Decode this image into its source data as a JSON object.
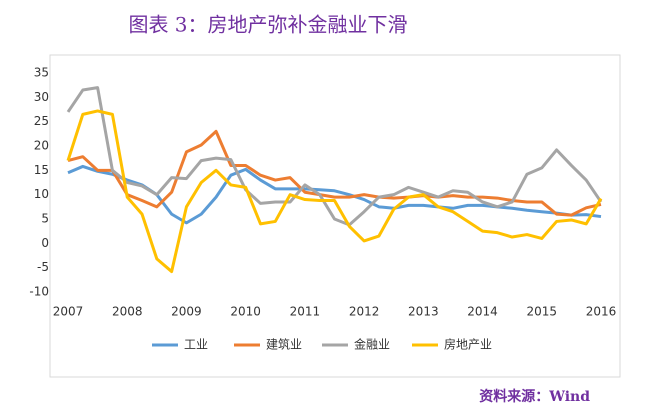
{
  "chart_data": {
    "type": "line",
    "title": "图表 3：房地产弥补金融业下滑",
    "source": "资料来源：Wind",
    "x": [
      2007,
      2007.25,
      2007.5,
      2007.75,
      2008,
      2008.25,
      2008.5,
      2008.75,
      2009,
      2009.25,
      2009.5,
      2009.75,
      2010,
      2010.25,
      2010.5,
      2010.75,
      2011,
      2011.25,
      2011.5,
      2011.75,
      2012,
      2012.25,
      2012.5,
      2012.75,
      2013,
      2013.25,
      2013.5,
      2013.75,
      2014,
      2014.25,
      2014.5,
      2014.75,
      2015,
      2015.25,
      2015.5,
      2015.75,
      2016
    ],
    "series": [
      {
        "name": "工业",
        "color": "#5b9bd5",
        "values": [
          14.5,
          15.8,
          14.8,
          14.2,
          13,
          12,
          10,
          6,
          4.2,
          6,
          9.5,
          14,
          15.2,
          13,
          11.2,
          11.2,
          11.2,
          11,
          10.8,
          10,
          9,
          7.5,
          7.2,
          7.8,
          7.8,
          7.5,
          7.2,
          7.8,
          7.8,
          7.5,
          7.2,
          6.8,
          6.5,
          6.2,
          5.8,
          5.9,
          5.5
        ]
      },
      {
        "name": "建筑业",
        "color": "#ed7d31",
        "values": [
          17,
          17.8,
          15,
          15,
          10,
          8.8,
          7.5,
          10.5,
          18.8,
          20.2,
          23,
          16,
          16,
          14,
          13,
          13.5,
          10.5,
          10,
          9.5,
          9.5,
          10,
          9.5,
          9.3,
          9.5,
          9.8,
          9.5,
          9.8,
          9.5,
          9.5,
          9.3,
          8.8,
          8.5,
          8.5,
          6,
          5.8,
          7.3,
          8
        ]
      },
      {
        "name": "金融业",
        "color": "#a5a5a5",
        "values": [
          27,
          31.5,
          32,
          15,
          12.5,
          11.8,
          10,
          13.5,
          13.3,
          17,
          17.5,
          17.2,
          11,
          8.2,
          8.5,
          8.5,
          12,
          10,
          5,
          3.8,
          6.5,
          9.5,
          10,
          11.5,
          10.5,
          9.5,
          10.8,
          10.5,
          8.5,
          7.5,
          8.5,
          14.2,
          15.5,
          19.2,
          16,
          13,
          8.5
        ]
      },
      {
        "name": "房地产业",
        "color": "#ffc000",
        "values": [
          17,
          26.5,
          27.2,
          26.5,
          9.5,
          6,
          -3.2,
          -5.8,
          7.5,
          12.5,
          15,
          12,
          11.5,
          4,
          4.5,
          10,
          9,
          8.8,
          8.8,
          3.5,
          0.5,
          1.5,
          7,
          9.5,
          10,
          7.5,
          6.5,
          4.5,
          2.5,
          2.2,
          1.3,
          1.8,
          1,
          4.5,
          4.8,
          4,
          9.2
        ]
      }
    ],
    "xlim": [
      2007,
      2016
    ],
    "xticks": [
      2007,
      2008,
      2009,
      2010,
      2011,
      2012,
      2013,
      2014,
      2015,
      2016
    ],
    "ylim": [
      -10,
      35
    ],
    "yticks": [
      -10,
      -5,
      0,
      5,
      10,
      15,
      20,
      25,
      30,
      35
    ]
  }
}
